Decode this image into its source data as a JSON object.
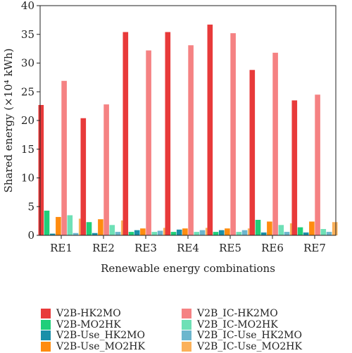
{
  "chart_data": {
    "type": "bar",
    "xlabel": "Renewable energy combinations",
    "ylabel": "Shared energy (×10⁴ kWh)",
    "ylim": [
      0,
      40
    ],
    "yticks": [
      "0",
      "5",
      "10",
      "15",
      "20",
      "25",
      "30",
      "35",
      "40"
    ],
    "categories": [
      "RE1",
      "RE2",
      "RE3",
      "RE4",
      "RE5",
      "RE6",
      "RE7"
    ],
    "grid": false,
    "legend_position": "bottom",
    "series": [
      {
        "name": "V2B-HK2MO",
        "color": "#e83a3a",
        "values": [
          22.7,
          20.4,
          35.4,
          35.4,
          36.7,
          28.8,
          23.5
        ]
      },
      {
        "name": "V2B-MO2HK",
        "color": "#1fcf7a",
        "values": [
          4.3,
          2.3,
          0.6,
          0.6,
          0.6,
          2.7,
          1.4
        ]
      },
      {
        "name": "V2B-Use_HK2MO",
        "color": "#1a8fa8",
        "values": [
          0.3,
          0.4,
          0.9,
          1.0,
          0.9,
          0.5,
          0.5
        ]
      },
      {
        "name": "V2B-Use_MO2HK",
        "color": "#ff8c0f",
        "values": [
          3.2,
          2.8,
          1.2,
          1.2,
          1.2,
          2.4,
          2.4
        ]
      },
      {
        "name": "V2B_IC-HK2MO",
        "color": "#f58283",
        "values": [
          26.9,
          22.8,
          32.2,
          33.1,
          35.2,
          31.8,
          24.5
        ]
      },
      {
        "name": "V2B_IC-MO2HK",
        "color": "#6ee0b6",
        "values": [
          3.5,
          1.8,
          0.6,
          0.6,
          0.6,
          1.8,
          1.1
        ]
      },
      {
        "name": "V2B_IC-Use_HK2MO",
        "color": "#6cb6cd",
        "values": [
          0.4,
          0.6,
          0.8,
          0.9,
          0.9,
          0.6,
          0.6
        ]
      },
      {
        "name": "V2B_IC-Use_MO2HK",
        "color": "#fbb15a",
        "values": [
          2.9,
          2.6,
          1.3,
          1.3,
          1.2,
          2.1,
          2.3
        ]
      }
    ]
  }
}
